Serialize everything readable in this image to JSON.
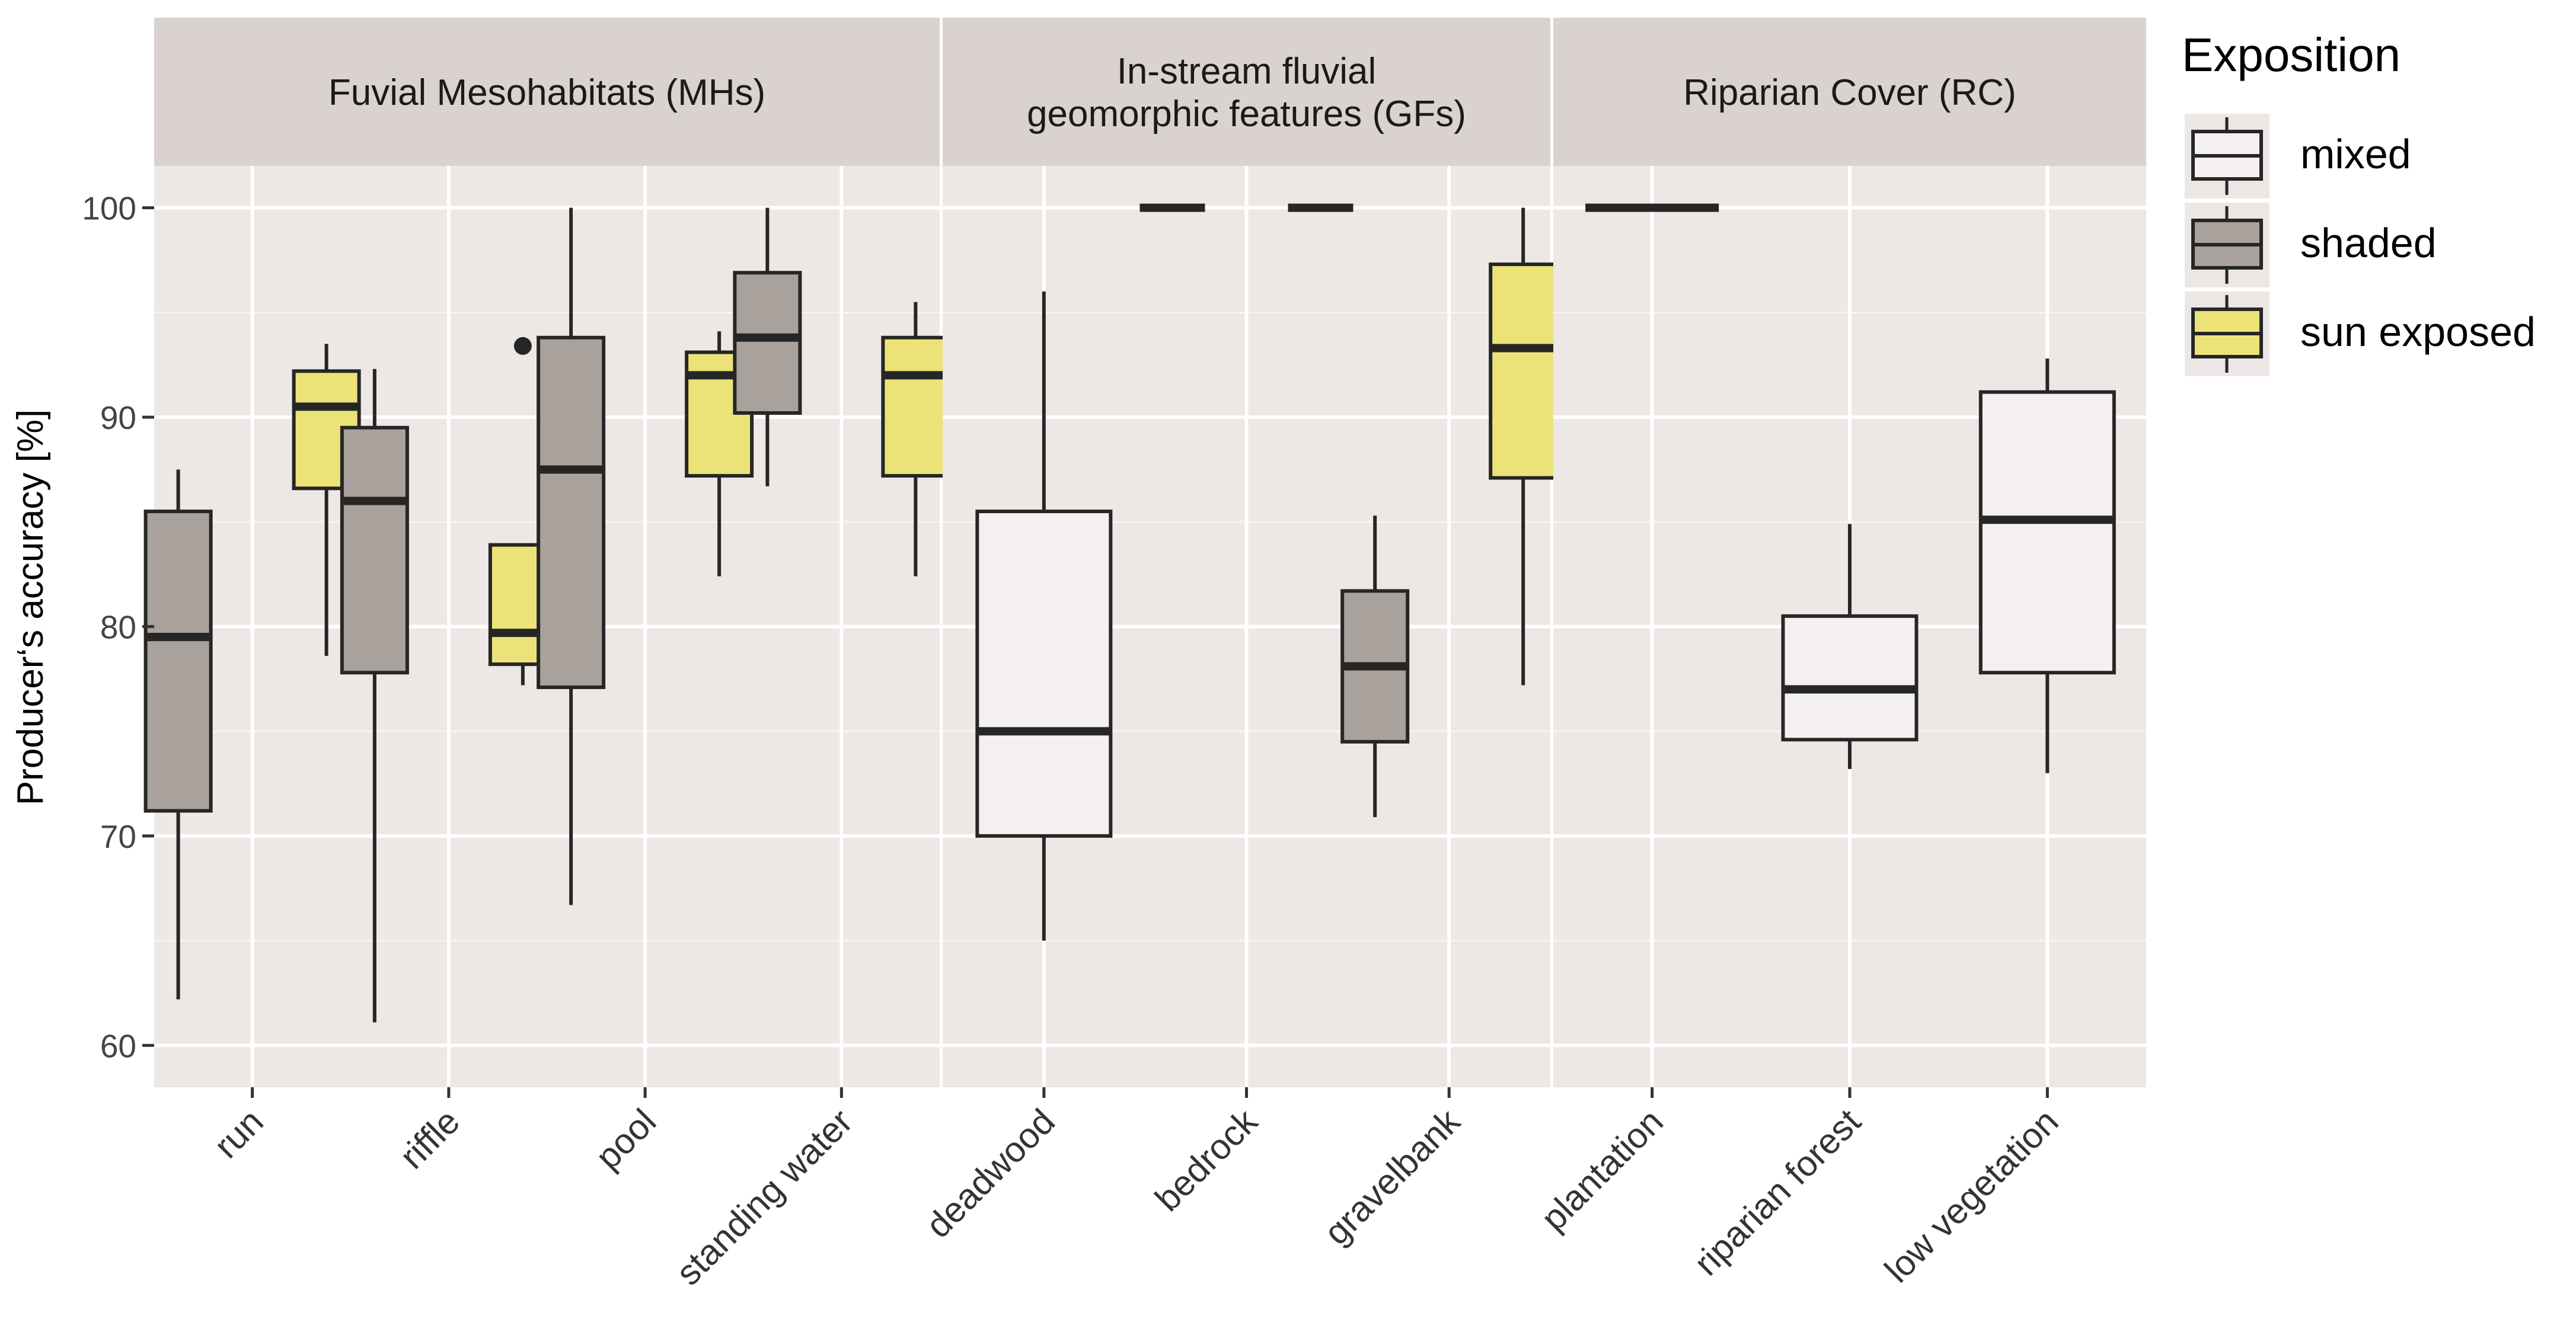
{
  "chart_data": {
    "type": "boxplot",
    "ylabel": "Producer‘s accuracy [%]",
    "ylim": [
      58,
      102
    ],
    "yticks": [
      60,
      70,
      80,
      90,
      100
    ],
    "grid": true,
    "legend": {
      "title": "Exposition",
      "position": "right",
      "entries": [
        {
          "name": "mixed",
          "color": "#f4f0ef"
        },
        {
          "name": "shaded",
          "color": "#a8a19c"
        },
        {
          "name": "sun exposed",
          "color": "#ebe377"
        }
      ]
    },
    "panels": [
      {
        "title": "Fuvial Mesohabitats (MHs)",
        "categories": [
          "run",
          "riffle",
          "pool",
          "standing water"
        ],
        "boxes": [
          {
            "category": "run",
            "exposition": "shaded",
            "min": 62.2,
            "q1": 71.2,
            "median": 79.5,
            "q3": 85.5,
            "max": 87.5,
            "outliers": []
          },
          {
            "category": "run",
            "exposition": "sun exposed",
            "min": 78.6,
            "q1": 86.6,
            "median": 90.5,
            "q3": 92.2,
            "max": 93.5,
            "outliers": []
          },
          {
            "category": "riffle",
            "exposition": "shaded",
            "min": 61.1,
            "q1": 77.8,
            "median": 86.0,
            "q3": 89.5,
            "max": 92.3,
            "outliers": []
          },
          {
            "category": "riffle",
            "exposition": "sun exposed",
            "min": 77.2,
            "q1": 78.2,
            "median": 79.7,
            "q3": 83.9,
            "max": 83.9,
            "outliers": [
              93.4
            ]
          },
          {
            "category": "pool",
            "exposition": "shaded",
            "min": 66.7,
            "q1": 77.1,
            "median": 87.5,
            "q3": 93.8,
            "max": 100,
            "outliers": []
          },
          {
            "category": "pool",
            "exposition": "sun exposed",
            "min": 82.4,
            "q1": 87.2,
            "median": 92.0,
            "q3": 93.1,
            "max": 94.1,
            "outliers": []
          },
          {
            "category": "standing water",
            "exposition": "shaded",
            "min": 86.7,
            "q1": 90.2,
            "median": 93.8,
            "q3": 96.9,
            "max": 100,
            "outliers": []
          },
          {
            "category": "standing water",
            "exposition": "sun exposed",
            "min": 82.4,
            "q1": 87.2,
            "median": 92.0,
            "q3": 93.8,
            "max": 95.5,
            "outliers": []
          }
        ]
      },
      {
        "title": "In-stream fluvial\ngeomorphic features (GFs)",
        "categories": [
          "deadwood",
          "bedrock",
          "gravelbank"
        ],
        "boxes": [
          {
            "category": "deadwood",
            "exposition": "mixed",
            "min": 65.0,
            "q1": 70.0,
            "median": 75.0,
            "q3": 85.5,
            "max": 96.0,
            "outliers": []
          },
          {
            "category": "bedrock",
            "exposition": "shaded",
            "min": 100,
            "q1": 100,
            "median": 100,
            "q3": 100,
            "max": 100,
            "outliers": []
          },
          {
            "category": "bedrock",
            "exposition": "sun exposed",
            "min": 100,
            "q1": 100,
            "median": 100,
            "q3": 100,
            "max": 100,
            "outliers": []
          },
          {
            "category": "gravelbank",
            "exposition": "shaded",
            "min": 70.9,
            "q1": 74.5,
            "median": 78.1,
            "q3": 81.7,
            "max": 85.3,
            "outliers": []
          },
          {
            "category": "gravelbank",
            "exposition": "sun exposed",
            "min": 77.2,
            "q1": 87.1,
            "median": 93.3,
            "q3": 97.3,
            "max": 100,
            "outliers": []
          }
        ]
      },
      {
        "title": "Riparian Cover (RC)",
        "categories": [
          "plantation",
          "riparian forest",
          "low vegetation"
        ],
        "boxes": [
          {
            "category": "plantation",
            "exposition": "mixed",
            "min": 100,
            "q1": 100,
            "median": 100,
            "q3": 100,
            "max": 100,
            "outliers": []
          },
          {
            "category": "riparian forest",
            "exposition": "mixed",
            "min": 73.2,
            "q1": 74.6,
            "median": 77.0,
            "q3": 80.5,
            "max": 84.9,
            "outliers": []
          },
          {
            "category": "low vegetation",
            "exposition": "mixed",
            "min": 73.0,
            "q1": 77.8,
            "median": 85.1,
            "q3": 91.2,
            "max": 92.8,
            "outliers": []
          }
        ]
      }
    ]
  }
}
